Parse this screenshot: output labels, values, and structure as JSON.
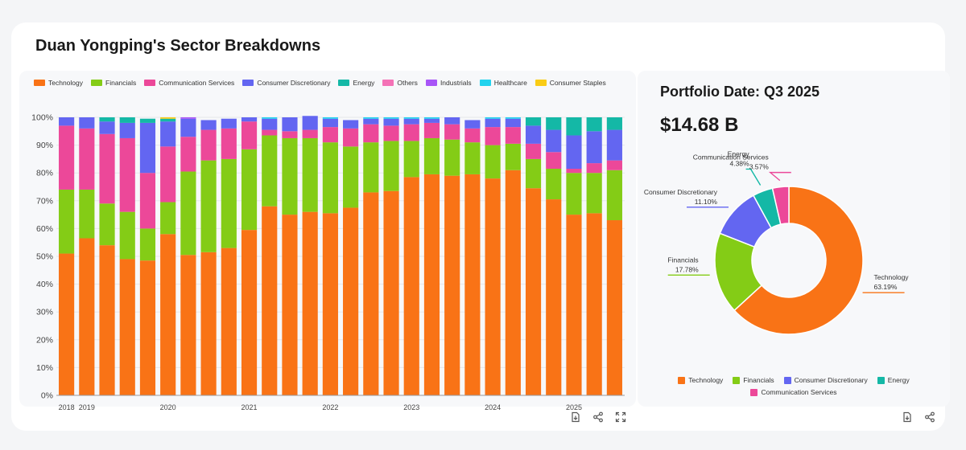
{
  "title": "Duan Yongping's Sector Breakdowns",
  "portfolio": {
    "date_label": "Portfolio Date: Q3 2025",
    "value_label": "$14.68 B"
  },
  "colors": {
    "Technology": "#f97316",
    "Financials": "#84cc16",
    "Communication Services": "#ec4899",
    "Consumer Discretionary": "#6366f1",
    "Energy": "#14b8a6",
    "Others": "#f472b6",
    "Industrials": "#a855f7",
    "Healthcare": "#22d3ee",
    "Consumer Staples": "#facc15"
  },
  "icons": [
    "download-icon",
    "share-icon",
    "fullscreen-icon"
  ],
  "chart_data": [
    {
      "type": "bar",
      "stacked": true,
      "legend": [
        "Technology",
        "Financials",
        "Communication Services",
        "Consumer Discretionary",
        "Energy",
        "Others",
        "Industrials",
        "Healthcare",
        "Consumer Staples"
      ],
      "x_tick_labels": [
        {
          "index": 0,
          "label": "2018"
        },
        {
          "index": 1,
          "label": "2019"
        },
        {
          "index": 5,
          "label": "2020"
        },
        {
          "index": 9,
          "label": "2021"
        },
        {
          "index": 13,
          "label": "2022"
        },
        {
          "index": 17,
          "label": "2023"
        },
        {
          "index": 21,
          "label": "2024"
        },
        {
          "index": 25,
          "label": "2025"
        }
      ],
      "y_ticks": [
        "0%",
        "10%",
        "20%",
        "30%",
        "40%",
        "50%",
        "60%",
        "70%",
        "80%",
        "90%",
        "100%"
      ],
      "ylim": [
        0,
        100
      ],
      "grid": true,
      "legend_position": "top",
      "series": [
        {
          "name": "Technology",
          "values": [
            51,
            56.5,
            54,
            49,
            48.5,
            58,
            50.5,
            51.5,
            53,
            59.5,
            68,
            65,
            66,
            65.5,
            67.5,
            73,
            73.5,
            78.5,
            79.5,
            79,
            79.5,
            78,
            81,
            74.5,
            70.5,
            65,
            65.5,
            63
          ]
        },
        {
          "name": "Financials",
          "values": [
            23,
            17.5,
            15,
            17,
            11.5,
            11.5,
            30,
            33,
            32,
            29,
            25.5,
            27.5,
            26.5,
            25.5,
            22,
            18,
            18,
            13,
            13,
            13,
            11.5,
            12,
            9.5,
            10.5,
            11,
            15,
            14.5,
            18
          ]
        },
        {
          "name": "Communication Services",
          "values": [
            23,
            22,
            25,
            26.5,
            20,
            20,
            12.5,
            11,
            11,
            10,
            2,
            2.5,
            3,
            5.5,
            6.5,
            6.5,
            5.5,
            6,
            5.5,
            5.5,
            5,
            6.5,
            6,
            5.5,
            6,
            1.5,
            3.5,
            3.5
          ]
        },
        {
          "name": "Consumer Discretionary",
          "values": [
            3,
            4,
            4.5,
            5.5,
            18,
            9,
            6.5,
            3.5,
            3.5,
            1.5,
            4,
            5,
            5,
            3,
            3,
            2,
            2.5,
            2,
            1.5,
            2.5,
            3,
            3,
            3,
            6.5,
            8,
            12,
            11.5,
            11
          ]
        },
        {
          "name": "Energy",
          "values": [
            0,
            0,
            1.5,
            2,
            1.5,
            1,
            0,
            0,
            0,
            0,
            0,
            0,
            0,
            0,
            0,
            0,
            0,
            0,
            0,
            0,
            0,
            0,
            0,
            3,
            4.5,
            6.5,
            5,
            4.5
          ]
        },
        {
          "name": "Others",
          "values": [
            0,
            0,
            0,
            0,
            0,
            0,
            0,
            0,
            0,
            0,
            0,
            0,
            0,
            0,
            0,
            0,
            0,
            0,
            0,
            0,
            0,
            0,
            0,
            0,
            0,
            0,
            0,
            0
          ]
        },
        {
          "name": "Industrials",
          "values": [
            0,
            0,
            0,
            0,
            0,
            0,
            0.5,
            0,
            0,
            0,
            0,
            0,
            0,
            0,
            0,
            0,
            0,
            0,
            0,
            0,
            0,
            0,
            0,
            0,
            0,
            0,
            0,
            0
          ]
        },
        {
          "name": "Healthcare",
          "values": [
            0,
            0,
            0,
            0,
            0,
            0,
            0,
            0,
            0,
            0,
            0.5,
            0,
            0,
            0.5,
            0,
            0.5,
            0.5,
            0.5,
            0.5,
            0,
            0,
            0.5,
            0.5,
            0,
            0,
            0,
            0,
            0
          ]
        },
        {
          "name": "Consumer Staples",
          "values": [
            0,
            0,
            0,
            0,
            0,
            0.5,
            0,
            0,
            0,
            0,
            0,
            0,
            0,
            0,
            0,
            0,
            0,
            0,
            0,
            0,
            0,
            0,
            0,
            0,
            0,
            0,
            0,
            0
          ]
        }
      ]
    },
    {
      "type": "pie",
      "donut": true,
      "slices": [
        {
          "name": "Technology",
          "value": 63.19,
          "label": "63.19%"
        },
        {
          "name": "Financials",
          "value": 17.78,
          "label": "17.78%"
        },
        {
          "name": "Consumer Discretionary",
          "value": 11.1,
          "label": "11.10%"
        },
        {
          "name": "Energy",
          "value": 4.38,
          "label": "4.38%"
        },
        {
          "name": "Communication Services",
          "value": 3.57,
          "label": "3.57%"
        }
      ],
      "legend": [
        "Technology",
        "Financials",
        "Consumer Discretionary",
        "Energy",
        "Communication Services"
      ],
      "legend_position": "bottom"
    }
  ]
}
